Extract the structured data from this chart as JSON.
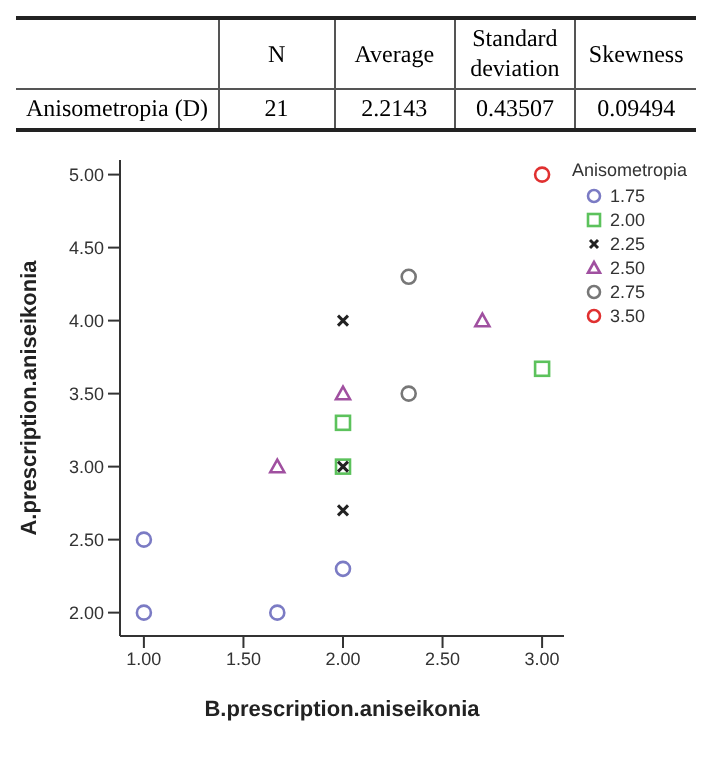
{
  "chart_data": [
    {
      "type": "heatmap",
      "data_labels": true,
      "categories": [
        "N",
        "Average",
        "Standard deviation",
        "Skewness"
      ],
      "y_categories": [
        "Anisometropia (D)"
      ],
      "cells": [
        [
          21,
          2.2143,
          0.43507,
          0.09494
        ]
      ]
    },
    {
      "type": "scatter",
      "xlabel": "B.prescription.aniseikonia",
      "ylabel": "A.prescription.aniseikonia",
      "legend_title": "Anisometropia",
      "legend": "right",
      "grid": false,
      "xlim": [
        0.88,
        3.11
      ],
      "ylim": [
        1.84,
        5.1
      ],
      "xticks": [
        {
          "value": 1,
          "label": "1.00"
        },
        {
          "value": 1.5,
          "label": "1.50"
        },
        {
          "value": 2,
          "label": "2.00"
        },
        {
          "value": 2.5,
          "label": "2.50"
        },
        {
          "value": 3,
          "label": "3.00"
        }
      ],
      "yticks": [
        {
          "value": 2,
          "label": "2.00"
        },
        {
          "value": 2.5,
          "label": "2.50"
        },
        {
          "value": 3,
          "label": "3.00"
        },
        {
          "value": 3.5,
          "label": "3.50"
        },
        {
          "value": 4,
          "label": "4.00"
        },
        {
          "value": 4.5,
          "label": "4.50"
        },
        {
          "value": 5,
          "label": "5.00"
        }
      ],
      "series": [
        {
          "name": "1.75",
          "color": "#7b7bc4",
          "marker": "circle",
          "x": [
            1,
            1,
            1.67,
            2
          ],
          "values": [
            2.5,
            2,
            2,
            2.3
          ]
        },
        {
          "name": "2.00",
          "color": "#5cc25c",
          "marker": "square",
          "x": [
            2,
            2,
            3
          ],
          "values": [
            3.3,
            3,
            3.67
          ]
        },
        {
          "name": "2.25",
          "color": "#222222",
          "marker": "cross",
          "x": [
            2,
            2,
            2
          ],
          "values": [
            4,
            3,
            2.7
          ]
        },
        {
          "name": "2.50",
          "color": "#a050a0",
          "marker": "triangle",
          "x": [
            1.67,
            2,
            2.7
          ],
          "values": [
            3,
            3.5,
            4
          ]
        },
        {
          "name": "2.75",
          "color": "#777777",
          "marker": "circle",
          "x": [
            2.33,
            2.33
          ],
          "values": [
            4.3,
            3.5
          ]
        },
        {
          "name": "3.50",
          "color": "#e03030",
          "marker": "circle",
          "x": [
            3
          ],
          "values": [
            5
          ]
        }
      ]
    }
  ]
}
